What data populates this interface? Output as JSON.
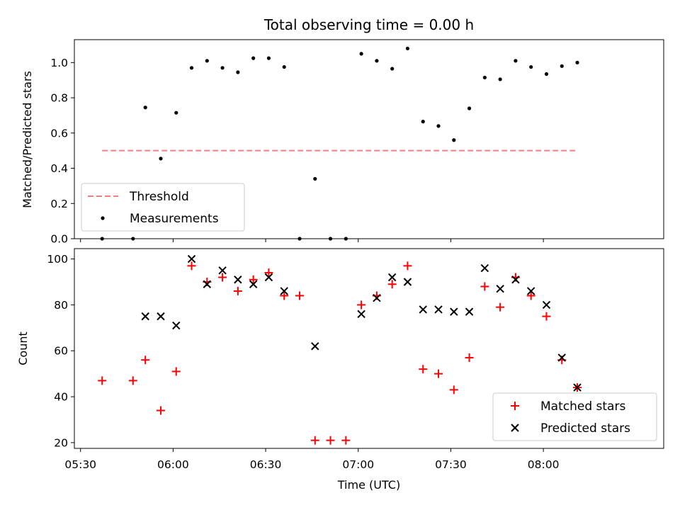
{
  "chart_data": [
    {
      "type": "scatter",
      "title": "Total observing time = 0.00 h",
      "xlabel": "",
      "ylabel": "Matched/Predicted stars",
      "xlim": [
        "05:28",
        "08:39"
      ],
      "ylim": [
        0,
        1.13
      ],
      "yticks": [
        "0.0",
        "0.2",
        "0.4",
        "0.6",
        "0.8",
        "1.0"
      ],
      "legend_position": "lower-left",
      "series": [
        {
          "name": "Threshold",
          "color": "#f08080",
          "style": "dashed",
          "x": [
            "05:37",
            "08:11"
          ],
          "y": [
            0.5,
            0.5
          ]
        },
        {
          "name": "Measurements",
          "color": "#000000",
          "x": [
            "05:37",
            "05:47",
            "05:51",
            "05:56",
            "06:01",
            "06:06",
            "06:11",
            "06:16",
            "06:21",
            "06:26",
            "06:31",
            "06:36",
            "06:41",
            "06:46",
            "06:51",
            "06:56",
            "07:01",
            "07:06",
            "07:11",
            "07:16",
            "07:21",
            "07:26",
            "07:31",
            "07:36",
            "07:41",
            "07:46",
            "07:51",
            "07:56",
            "08:01",
            "08:06",
            "08:11"
          ],
          "y": [
            0.0,
            0.0,
            0.745,
            0.455,
            0.715,
            0.97,
            1.01,
            0.97,
            0.945,
            1.025,
            1.025,
            0.975,
            0.0,
            0.34,
            0.0,
            0.0,
            1.05,
            1.01,
            0.965,
            1.08,
            0.665,
            0.64,
            0.56,
            0.74,
            0.915,
            0.905,
            1.01,
            0.975,
            0.935,
            0.98,
            1.0
          ]
        }
      ]
    },
    {
      "type": "scatter",
      "title": "",
      "xlabel": "Time (UTC)",
      "ylabel": "Count",
      "xlim": [
        "05:28",
        "08:39"
      ],
      "ylim": [
        17.5,
        104.5
      ],
      "xticks": [
        "05:30",
        "06:00",
        "06:30",
        "07:00",
        "07:30",
        "08:00"
      ],
      "yticks": [
        "20",
        "40",
        "60",
        "80",
        "100"
      ],
      "legend_position": "lower-right",
      "series": [
        {
          "name": "Matched stars",
          "color": "#ff0000",
          "marker": "plus",
          "x": [
            "05:37",
            "05:47",
            "05:51",
            "05:56",
            "06:01",
            "06:06",
            "06:11",
            "06:16",
            "06:21",
            "06:26",
            "06:31",
            "06:36",
            "06:41",
            "06:46",
            "06:51",
            "06:56",
            "07:01",
            "07:06",
            "07:11",
            "07:16",
            "07:21",
            "07:26",
            "07:31",
            "07:36",
            "07:41",
            "07:46",
            "07:51",
            "07:56",
            "08:01",
            "08:06",
            "08:11"
          ],
          "y": [
            47,
            47,
            56,
            34,
            51,
            97,
            90,
            92,
            86,
            91,
            94,
            84,
            84,
            21,
            21,
            21,
            80,
            84,
            89,
            97,
            52,
            50,
            43,
            57,
            88,
            79,
            92,
            84,
            75,
            56,
            44
          ]
        },
        {
          "name": "Predicted stars",
          "color": "#000000",
          "marker": "x",
          "x": [
            "05:51",
            "05:56",
            "06:01",
            "06:06",
            "06:11",
            "06:16",
            "06:21",
            "06:26",
            "06:31",
            "06:36",
            "06:46",
            "07:01",
            "07:06",
            "07:11",
            "07:16",
            "07:21",
            "07:26",
            "07:31",
            "07:36",
            "07:41",
            "07:46",
            "07:51",
            "07:56",
            "08:01",
            "08:06",
            "08:11"
          ],
          "y": [
            75,
            75,
            71,
            100,
            89,
            95,
            91,
            89,
            92,
            86,
            62,
            76,
            83,
            92,
            90,
            78,
            78,
            77,
            77,
            96,
            87,
            91,
            86,
            80,
            57,
            44
          ]
        }
      ]
    }
  ]
}
